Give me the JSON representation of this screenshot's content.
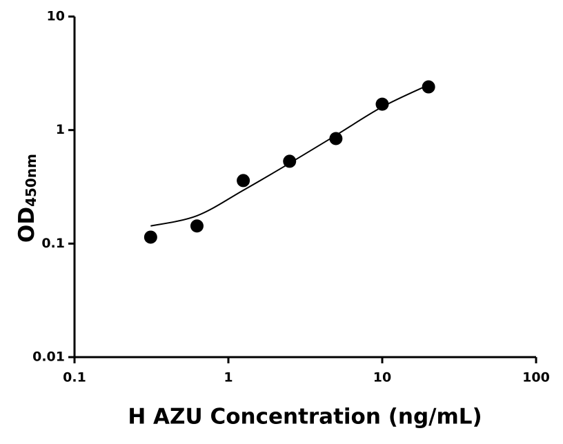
{
  "chart_data": {
    "type": "scatter",
    "x_label": "H AZU Concentration (ng/mL)",
    "y_label": "OD",
    "y_label_sub": "450nm",
    "x": [
      0.3125,
      0.625,
      1.25,
      2.5,
      5,
      10,
      20
    ],
    "values": [
      0.114,
      0.143,
      0.359,
      0.531,
      0.842,
      1.69,
      2.4
    ],
    "color": "#000000",
    "fit": {
      "x": [
        0.3125,
        0.625,
        1.25,
        2.5,
        5,
        10,
        20
      ],
      "values": [
        0.143,
        0.176,
        0.295,
        0.51,
        0.9,
        1.6,
        2.5
      ]
    },
    "xlim": [
      0.1,
      100
    ],
    "ylim": [
      0.01,
      10
    ],
    "xticks": [
      0.1,
      1,
      10,
      100
    ],
    "yticks": [
      0.01,
      0.1,
      1,
      10
    ],
    "xscale": "log",
    "yscale": "log",
    "grid": false
  }
}
